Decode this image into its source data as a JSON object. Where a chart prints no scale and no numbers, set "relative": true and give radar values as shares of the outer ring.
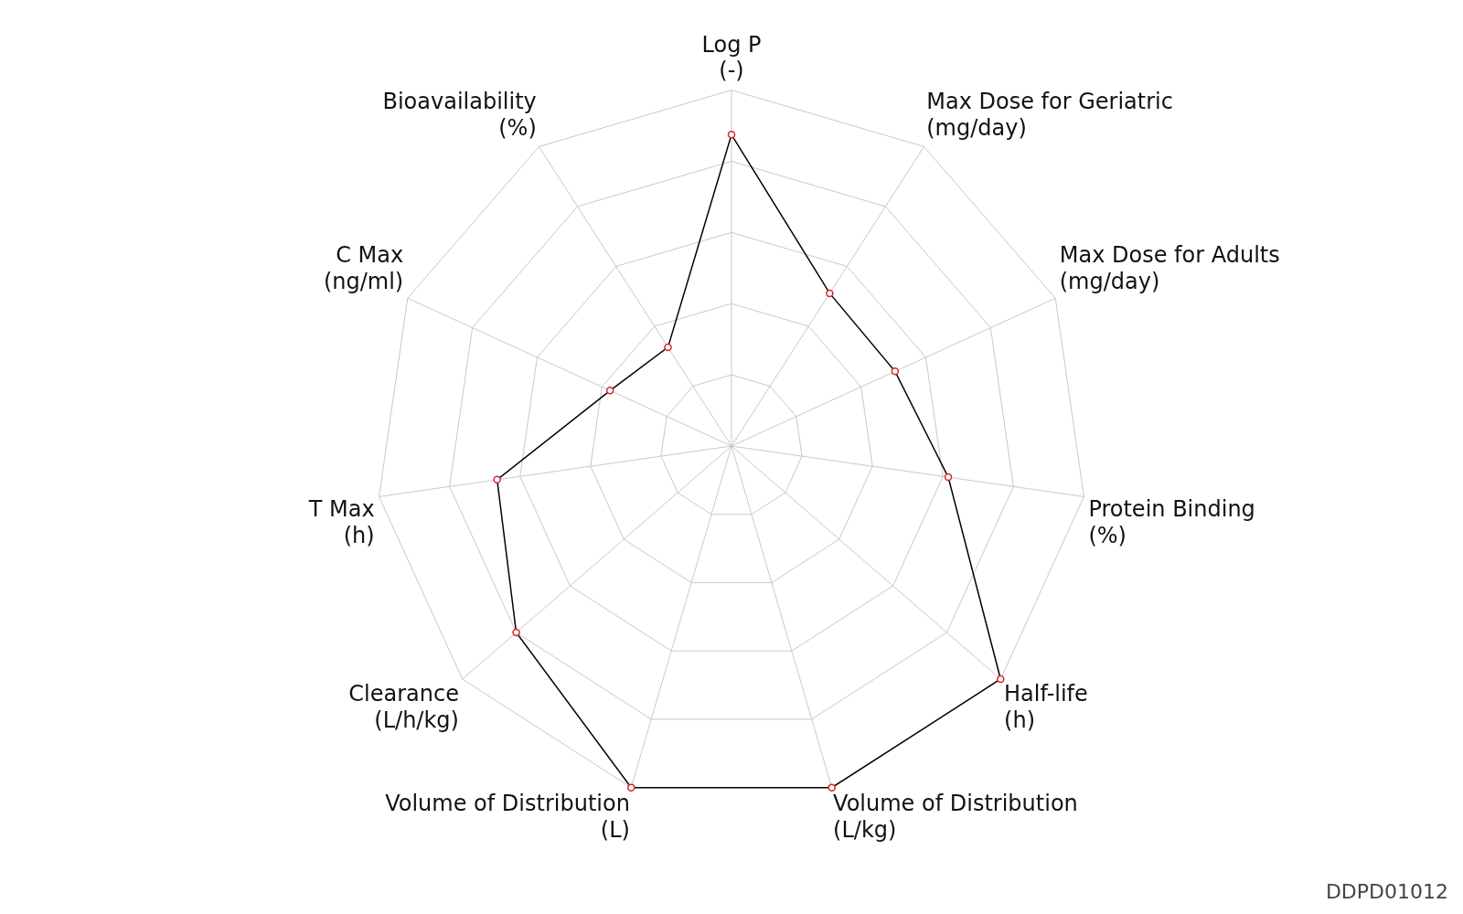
{
  "chart_data": {
    "type": "radar",
    "relative": true,
    "grid": true,
    "marker": "circle",
    "legend": false,
    "categories": [
      "Log P\n(-)",
      "Max Dose for Geriatric\n(mg/day)",
      "Max Dose for Adults\n(mg/day)",
      "Protein Binding\n(%)",
      "Half-life\n(h)",
      "Volume of Distribution\n(L/kg)",
      "Volume of Distribution\n(L)",
      "Clearance\n(L/h/kg)",
      "T Max\n(h)",
      "C Max\n(ng/ml)",
      "Bioavailability\n(%)"
    ],
    "series": [
      {
        "color": "#000000",
        "values": [
          0.875,
          0.51,
          0.505,
          0.615,
          1.0,
          1.0,
          1.0,
          0.8,
          0.665,
          0.375,
          0.33
        ]
      }
    ],
    "annotations": [
      "DDPD01012"
    ]
  }
}
